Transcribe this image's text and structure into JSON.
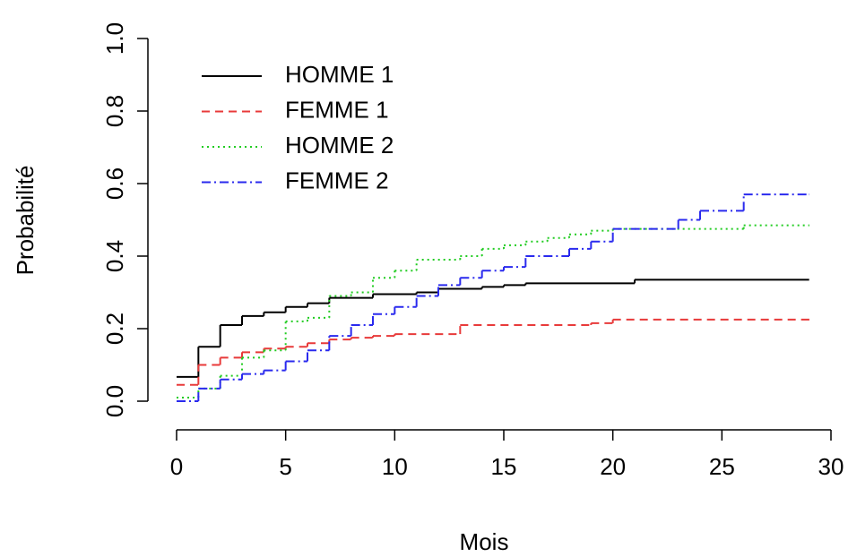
{
  "chart_data": {
    "type": "step",
    "xlabel": "Mois",
    "ylabel": "Probabilité",
    "xlim": [
      0,
      30
    ],
    "ylim": [
      0,
      1
    ],
    "xticks": [
      0,
      5,
      10,
      15,
      20,
      25,
      30
    ],
    "yticks": [
      {
        "value": 0,
        "label": "0.0"
      },
      {
        "value": 0.2,
        "label": "0.2"
      },
      {
        "value": 0.4,
        "label": "0.4"
      },
      {
        "value": 0.6,
        "label": "0.6"
      },
      {
        "value": 0.8,
        "label": "0.8"
      },
      {
        "value": 1,
        "label": "1.0"
      }
    ],
    "legend": "top-left",
    "series": [
      {
        "name": "HOMME 1",
        "color": "#000000",
        "dash": "none",
        "x": [
          0,
          1,
          2,
          3,
          4,
          5,
          6,
          7,
          9,
          11,
          12,
          14,
          15,
          16,
          21,
          29
        ],
        "values": [
          0.067,
          0.15,
          0.21,
          0.235,
          0.245,
          0.26,
          0.27,
          0.285,
          0.295,
          0.3,
          0.31,
          0.315,
          0.32,
          0.325,
          0.335,
          0.335
        ]
      },
      {
        "name": "FEMME 1",
        "color": "#e83a3a",
        "dash": "9,6",
        "x": [
          0,
          1,
          2,
          3,
          4,
          5,
          6,
          7,
          8,
          9,
          10,
          13,
          19,
          20,
          29
        ],
        "values": [
          0.045,
          0.1,
          0.12,
          0.135,
          0.145,
          0.15,
          0.16,
          0.17,
          0.175,
          0.18,
          0.185,
          0.21,
          0.215,
          0.225,
          0.225
        ]
      },
      {
        "name": "HOMME 2",
        "color": "#22cc22",
        "dash": "2,4",
        "x": [
          0,
          1,
          2,
          3,
          4,
          5,
          6,
          7,
          8,
          9,
          10,
          11,
          13,
          14,
          15,
          16,
          17,
          18,
          19,
          20,
          26,
          29
        ],
        "values": [
          0.01,
          0.035,
          0.07,
          0.12,
          0.14,
          0.22,
          0.23,
          0.29,
          0.3,
          0.34,
          0.36,
          0.39,
          0.4,
          0.42,
          0.43,
          0.44,
          0.45,
          0.46,
          0.47,
          0.475,
          0.485,
          0.485
        ]
      },
      {
        "name": "FEMME 2",
        "color": "#2a2aee",
        "dash": "10,4,2,4",
        "x": [
          0,
          1,
          2,
          3,
          4,
          5,
          6,
          7,
          8,
          9,
          10,
          11,
          12,
          13,
          14,
          15,
          16,
          18,
          19,
          20,
          23,
          24,
          26,
          29
        ],
        "values": [
          0,
          0.035,
          0.06,
          0.075,
          0.085,
          0.11,
          0.14,
          0.18,
          0.21,
          0.24,
          0.26,
          0.29,
          0.32,
          0.34,
          0.36,
          0.37,
          0.4,
          0.42,
          0.44,
          0.475,
          0.5,
          0.525,
          0.57,
          0.57
        ]
      }
    ]
  }
}
